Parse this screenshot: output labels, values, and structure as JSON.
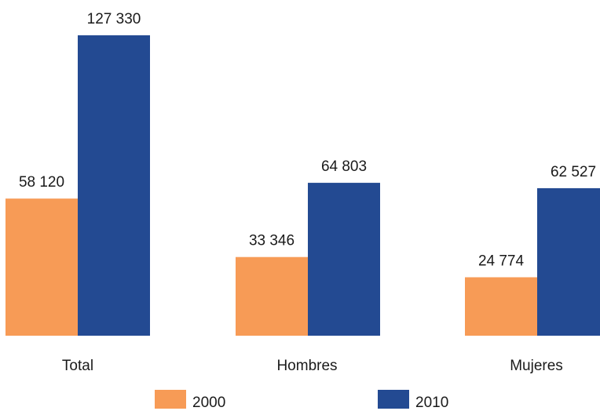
{
  "chart_data": {
    "type": "bar",
    "categories": [
      "Total",
      "Hombres",
      "Mujeres"
    ],
    "series": [
      {
        "name": "2000",
        "color": "#f79b56",
        "values": [
          58120,
          33346,
          24774
        ],
        "labels": [
          "58 120",
          "33 346",
          "24 774"
        ]
      },
      {
        "name": "2010",
        "color": "#234a92",
        "values": [
          127330,
          64803,
          62527
        ],
        "labels": [
          "127 330",
          "64 803",
          "62 527"
        ]
      }
    ],
    "title": "",
    "xlabel": "",
    "ylabel": "",
    "ylim": [
      0,
      127330
    ],
    "grid": false,
    "legend": "bottom"
  }
}
